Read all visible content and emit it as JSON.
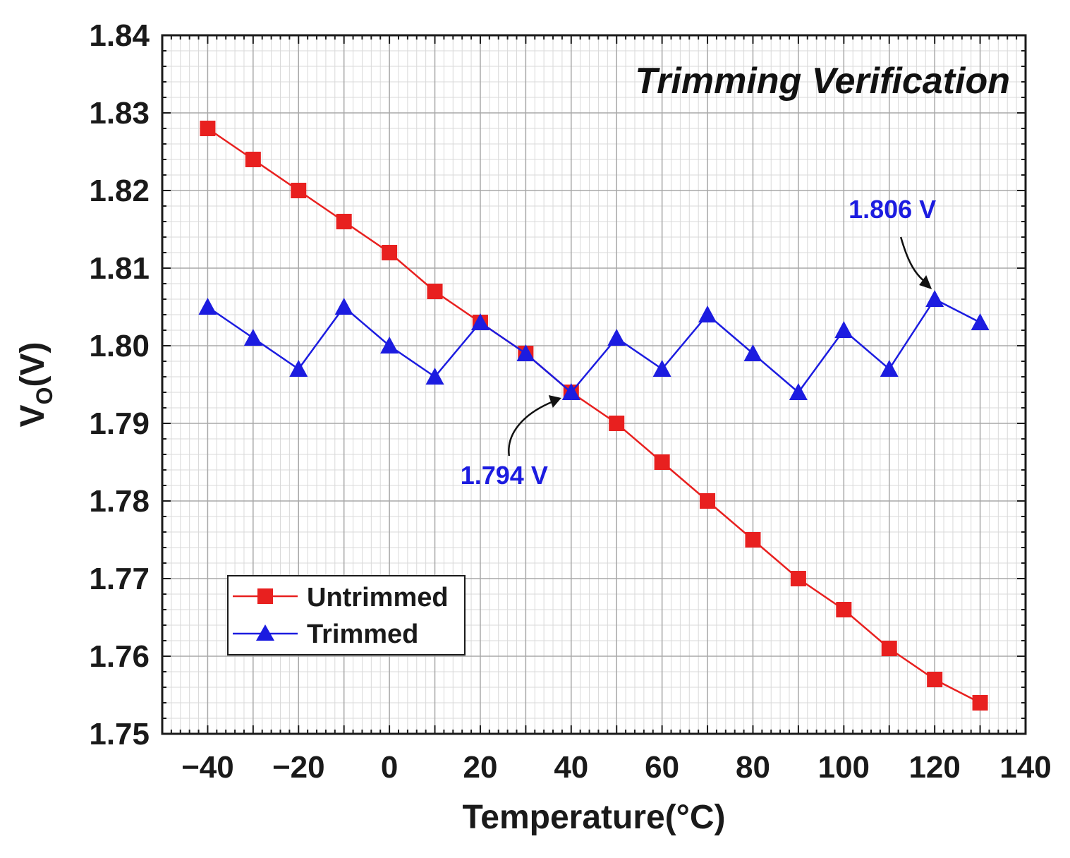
{
  "chart_data": {
    "type": "line",
    "title": "Trimming Verification",
    "xlabel": "Temperature(°C)",
    "ylabel_main": "V",
    "ylabel_sub": "O",
    "ylabel_unit": "(V)",
    "xlim": [
      -50,
      140
    ],
    "ylim": [
      1.75,
      1.84
    ],
    "grid": true,
    "minor_grid": true,
    "legend_position": "bottom-left",
    "x_ticks": [
      -40,
      -20,
      0,
      20,
      40,
      60,
      80,
      100,
      120,
      140
    ],
    "x_tick_labels": [
      "−40",
      "−20",
      "0",
      "20",
      "40",
      "60",
      "80",
      "100",
      "120",
      "140"
    ],
    "y_ticks": [
      1.75,
      1.76,
      1.77,
      1.78,
      1.79,
      1.8,
      1.81,
      1.82,
      1.83,
      1.84
    ],
    "y_tick_labels": [
      "1.75",
      "1.76",
      "1.77",
      "1.78",
      "1.79",
      "1.80",
      "1.81",
      "1.82",
      "1.83",
      "1.84"
    ],
    "x": [
      -40,
      -30,
      -20,
      -10,
      0,
      10,
      20,
      30,
      40,
      50,
      60,
      70,
      80,
      90,
      100,
      110,
      120,
      130
    ],
    "series": [
      {
        "name": "Untrimmed",
        "color": "#e8201f",
        "marker": "square",
        "values": [
          1.828,
          1.824,
          1.82,
          1.816,
          1.812,
          1.807,
          1.803,
          1.799,
          1.794,
          1.79,
          1.785,
          1.78,
          1.775,
          1.77,
          1.766,
          1.761,
          1.757,
          1.754
        ]
      },
      {
        "name": "Trimmed",
        "color": "#1c1ce0",
        "marker": "triangle",
        "values": [
          1.805,
          1.801,
          1.797,
          1.805,
          1.8,
          1.796,
          1.803,
          1.799,
          1.794,
          1.801,
          1.797,
          1.804,
          1.799,
          1.794,
          1.802,
          1.797,
          1.806,
          1.803
        ]
      }
    ],
    "annotations": [
      {
        "text": "1.806 V",
        "x": 120,
        "y": 1.806,
        "color": "#1c1ce0"
      },
      {
        "text": "1.794 V",
        "x": 40,
        "y": 1.794,
        "color": "#1c1ce0"
      }
    ]
  }
}
